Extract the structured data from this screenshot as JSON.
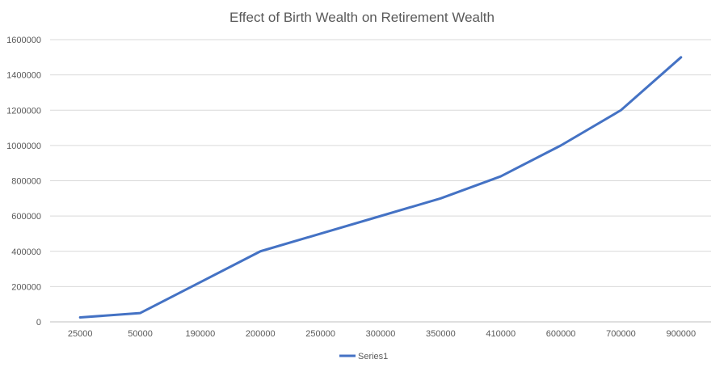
{
  "chart_data": {
    "type": "line",
    "title": "Effect of Birth Wealth on Retirement Wealth",
    "xlabel": "",
    "ylabel": "",
    "categories": [
      "25000",
      "50000",
      "190000",
      "200000",
      "250000",
      "300000",
      "350000",
      "410000",
      "600000",
      "700000",
      "900000"
    ],
    "series": [
      {
        "name": "Series1",
        "color": "#4472c4",
        "values": [
          25000,
          50000,
          225000,
          400000,
          500000,
          600000,
          700000,
          825000,
          1000000,
          1200000,
          1500000
        ]
      }
    ],
    "ylim": [
      0,
      1600000
    ],
    "yticks": [
      "0",
      "200000",
      "400000",
      "600000",
      "800000",
      "1000000",
      "1200000",
      "1400000",
      "1600000"
    ],
    "grid": "horizontal",
    "legend": "bottom"
  }
}
